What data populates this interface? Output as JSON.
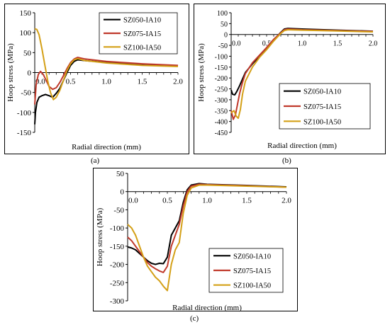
{
  "colors": {
    "SZ050-IA10": "#000000",
    "SZ075-IA15": "#c0392b",
    "SZ100-IA50": "#d4a017"
  },
  "chart_data": [
    {
      "id": "a",
      "type": "line",
      "panel_label": "(a)",
      "xlabel": "Radial direction (mm)",
      "ylabel": "Hoop stress (MPa)",
      "xlim": [
        0,
        2.0
      ],
      "ylim": [
        -150,
        150
      ],
      "xticks": [
        "0.0",
        "0.5",
        "1.0",
        "1.5",
        "2.0"
      ],
      "yticks": [
        "150",
        "100",
        "50",
        "0",
        "-50",
        "-100",
        "-150"
      ],
      "legend_position": "top-right",
      "series": [
        {
          "name": "SZ050-IA10",
          "color": "#000000",
          "x": [
            0,
            0.01,
            0.03,
            0.06,
            0.1,
            0.15,
            0.2,
            0.25,
            0.3,
            0.35,
            0.4,
            0.45,
            0.5,
            0.55,
            0.6,
            0.7,
            1.0,
            1.5,
            2.0
          ],
          "y": [
            -130,
            -100,
            -75,
            -62,
            -58,
            -55,
            -58,
            -62,
            -52,
            -40,
            -20,
            0,
            18,
            28,
            32,
            30,
            25,
            20,
            17
          ]
        },
        {
          "name": "SZ075-IA15",
          "color": "#c0392b",
          "x": [
            0,
            0.02,
            0.05,
            0.08,
            0.12,
            0.16,
            0.2,
            0.25,
            0.3,
            0.35,
            0.4,
            0.45,
            0.5,
            0.55,
            0.6,
            0.7,
            1.0,
            1.5,
            2.0
          ],
          "y": [
            -80,
            -30,
            -5,
            3,
            -5,
            -20,
            -35,
            -42,
            -38,
            -25,
            -8,
            10,
            25,
            34,
            38,
            34,
            28,
            22,
            18
          ]
        },
        {
          "name": "SZ100-IA50",
          "color": "#d4a017",
          "x": [
            0,
            0.03,
            0.06,
            0.1,
            0.14,
            0.18,
            0.22,
            0.26,
            0.3,
            0.35,
            0.4,
            0.45,
            0.5,
            0.55,
            0.6,
            0.7,
            1.0,
            1.5,
            2.0
          ],
          "y": [
            110,
            108,
            95,
            60,
            20,
            -20,
            -50,
            -68,
            -62,
            -45,
            -20,
            5,
            22,
            32,
            35,
            30,
            24,
            18,
            15
          ]
        }
      ]
    },
    {
      "id": "b",
      "type": "line",
      "panel_label": "(b)",
      "xlabel": "Radial direction (mm)",
      "ylabel": "Hoop stress (MPa)",
      "xlim": [
        0,
        2.0
      ],
      "ylim": [
        -450,
        100
      ],
      "xticks": [
        "0.0",
        "0.5",
        "1.0",
        "1.5",
        "2.0"
      ],
      "yticks": [
        "100",
        "50",
        "0",
        "-50",
        "-100",
        "-150",
        "-200",
        "-250",
        "-300",
        "-350",
        "-400",
        "-450"
      ],
      "legend_position": "bottom-right",
      "series": [
        {
          "name": "SZ050-IA10",
          "color": "#000000",
          "x": [
            0,
            0.02,
            0.05,
            0.08,
            0.12,
            0.16,
            0.2,
            0.3,
            0.4,
            0.5,
            0.6,
            0.7,
            0.75,
            0.8,
            1.0,
            1.5,
            2.0
          ],
          "y": [
            -255,
            -275,
            -278,
            -262,
            -235,
            -205,
            -175,
            -135,
            -100,
            -65,
            -25,
            10,
            25,
            28,
            25,
            20,
            15
          ]
        },
        {
          "name": "SZ075-IA15",
          "color": "#c0392b",
          "x": [
            0,
            0.03,
            0.06,
            0.09,
            0.12,
            0.16,
            0.2,
            0.3,
            0.4,
            0.5,
            0.6,
            0.7,
            0.75,
            0.8,
            1.0,
            1.5,
            2.0
          ],
          "y": [
            -350,
            -390,
            -370,
            -320,
            -270,
            -220,
            -180,
            -130,
            -95,
            -60,
            -22,
            8,
            22,
            25,
            22,
            18,
            14
          ]
        },
        {
          "name": "SZ100-IA50",
          "color": "#d4a017",
          "x": [
            0,
            0.04,
            0.07,
            0.1,
            0.13,
            0.16,
            0.2,
            0.3,
            0.4,
            0.5,
            0.6,
            0.7,
            0.75,
            0.8,
            1.0,
            1.5,
            2.0
          ],
          "y": [
            -360,
            -350,
            -375,
            -385,
            -345,
            -275,
            -215,
            -150,
            -105,
            -70,
            -30,
            5,
            18,
            22,
            20,
            16,
            12
          ]
        }
      ]
    },
    {
      "id": "c",
      "type": "line",
      "panel_label": "(c)",
      "xlabel": "Radial direction (mm)",
      "ylabel": "Hoop stress (MPa)",
      "xlim": [
        0,
        2.0
      ],
      "ylim": [
        -300,
        50
      ],
      "xticks": [
        "0.0",
        "0.5",
        "1.0",
        "1.5",
        "2.0"
      ],
      "yticks": [
        "50",
        "0",
        "-50",
        "-100",
        "-150",
        "-200",
        "-250",
        "-300"
      ],
      "legend_position": "bottom-right",
      "series": [
        {
          "name": "SZ050-IA10",
          "color": "#000000",
          "x": [
            0,
            0.05,
            0.1,
            0.15,
            0.2,
            0.25,
            0.3,
            0.35,
            0.4,
            0.45,
            0.5,
            0.55,
            0.6,
            0.65,
            0.7,
            0.75,
            0.8,
            0.9,
            1.0,
            1.5,
            2.0
          ],
          "y": [
            -152,
            -155,
            -160,
            -170,
            -180,
            -190,
            -197,
            -200,
            -197,
            -198,
            -180,
            -120,
            -100,
            -80,
            -30,
            5,
            18,
            22,
            20,
            17,
            13
          ]
        },
        {
          "name": "SZ075-IA15",
          "color": "#c0392b",
          "x": [
            0,
            0.05,
            0.1,
            0.15,
            0.2,
            0.25,
            0.3,
            0.35,
            0.4,
            0.45,
            0.5,
            0.55,
            0.6,
            0.65,
            0.7,
            0.75,
            0.8,
            0.9,
            1.0,
            1.5,
            2.0
          ],
          "y": [
            -125,
            -135,
            -150,
            -165,
            -180,
            -195,
            -205,
            -212,
            -218,
            -222,
            -205,
            -150,
            -120,
            -90,
            -40,
            0,
            15,
            20,
            19,
            16,
            12
          ]
        },
        {
          "name": "SZ100-IA50",
          "color": "#d4a017",
          "x": [
            0,
            0.05,
            0.1,
            0.15,
            0.2,
            0.25,
            0.3,
            0.35,
            0.4,
            0.45,
            0.5,
            0.55,
            0.6,
            0.65,
            0.7,
            0.75,
            0.8,
            0.9,
            1.0,
            1.5,
            2.0
          ],
          "y": [
            -90,
            -100,
            -120,
            -150,
            -180,
            -205,
            -220,
            -235,
            -245,
            -260,
            -272,
            -200,
            -160,
            -140,
            -60,
            -10,
            10,
            18,
            18,
            15,
            12
          ]
        }
      ]
    }
  ]
}
